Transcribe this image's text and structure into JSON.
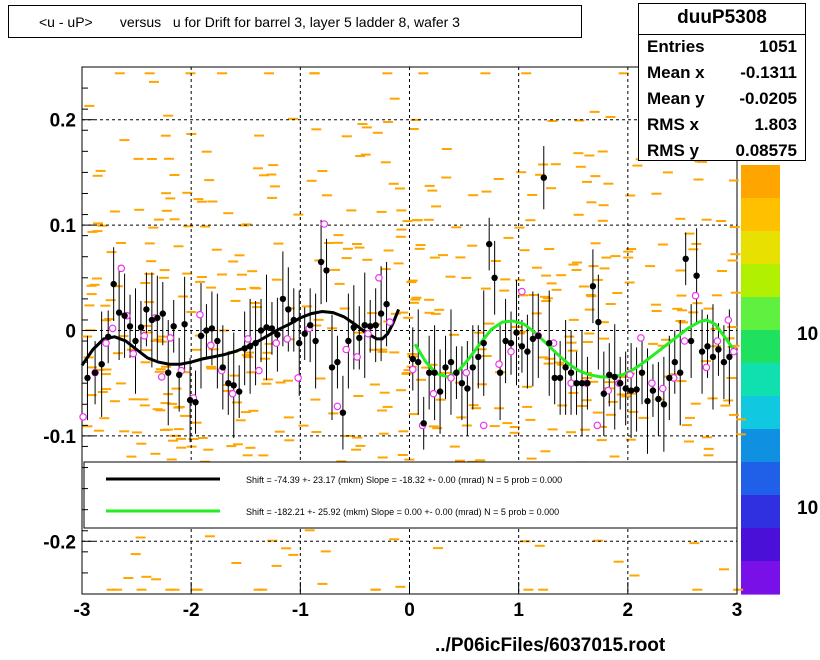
{
  "title": "<u - uP>       versus   u for Drift for barrel 3, layer 5 ladder 8, wafer 3",
  "stats": {
    "name": "duuP5308",
    "rows": [
      {
        "label": "Entries",
        "value": "1051"
      },
      {
        "label": "Mean x",
        "value": "-0.1311"
      },
      {
        "label": "Mean y",
        "value": "-0.0205"
      },
      {
        "label": "RMS x",
        "value": "1.803"
      },
      {
        "label": "RMS y",
        "value": "0.08575"
      }
    ]
  },
  "legend": [
    {
      "color": "#000000",
      "text": "Shift =   -74.39 +- 23.17 (mkm) Slope =   -18.32 +- 0.00 (mrad)  N = 5 prob = 0.000"
    },
    {
      "color": "#22ee22",
      "text": "Shift =  -182.21 +- 25.92 (mkm) Slope =     0.00 +- 0.00 (mrad)  N = 5 prob = 0.000"
    }
  ],
  "footer": "../P06icFiles/6037015.root",
  "palette_labels": [
    "10",
    "10"
  ],
  "colors": {
    "hist": "#ffa500",
    "black_fit": "#000000",
    "green_fit": "#22ee22",
    "open_marker": "#ee33ee"
  },
  "chart_data": {
    "type": "scatter",
    "xlim": [
      -3,
      3
    ],
    "ylim": [
      -0.25,
      0.25
    ],
    "x_ticks": [
      -3,
      -2,
      -1,
      0,
      1,
      2,
      3
    ],
    "x_tick_labels": [
      "-3",
      "-2",
      "-1",
      "0",
      "1",
      "2",
      "3"
    ],
    "y_ticks": [
      -0.2,
      -0.1,
      0,
      0.1,
      0.2
    ],
    "y_tick_labels": [
      "-0.2",
      "-0.1",
      "0",
      "0.1",
      "0.2"
    ],
    "grid": true,
    "black_points": [
      [
        -2.95,
        -0.045
      ],
      [
        -2.88,
        -0.04
      ],
      [
        -2.82,
        -0.032
      ],
      [
        -2.76,
        -0.006
      ],
      [
        -2.71,
        0.044
      ],
      [
        -2.66,
        0.017
      ],
      [
        -2.61,
        0.014
      ],
      [
        -2.56,
        0.004
      ],
      [
        -2.51,
        -0.01
      ],
      [
        -2.46,
        0.003
      ],
      [
        -2.41,
        0.02
      ],
      [
        -2.36,
        0.01
      ],
      [
        -2.31,
        0.012
      ],
      [
        -2.26,
        0.016
      ],
      [
        -2.21,
        -0.04
      ],
      [
        -2.16,
        0.004
      ],
      [
        -2.11,
        -0.042
      ],
      [
        -2.06,
        0.006
      ],
      [
        -2.01,
        -0.066
      ],
      [
        -1.96,
        -0.068
      ],
      [
        -1.91,
        -0.005
      ],
      [
        -1.86,
        0.0
      ],
      [
        -1.81,
        0.002
      ],
      [
        -1.76,
        -0.01
      ],
      [
        -1.71,
        -0.035
      ],
      [
        -1.66,
        -0.05
      ],
      [
        -1.61,
        -0.052
      ],
      [
        -1.56,
        -0.058
      ],
      [
        -1.51,
        -0.017
      ],
      [
        -1.46,
        -0.015
      ],
      [
        -1.41,
        -0.012
      ],
      [
        -1.36,
        0.0
      ],
      [
        -1.31,
        0.003
      ],
      [
        -1.26,
        0.002
      ],
      [
        -1.21,
        -0.004
      ],
      [
        -1.16,
        0.03
      ],
      [
        -1.11,
        0.02
      ],
      [
        -1.06,
        0.01
      ],
      [
        -1.01,
        -0.012
      ],
      [
        -0.96,
        -0.003
      ],
      [
        -0.91,
        0.005
      ],
      [
        -0.86,
        -0.01
      ],
      [
        -0.81,
        0.065
      ],
      [
        -0.76,
        0.057
      ],
      [
        -0.71,
        -0.035
      ],
      [
        -0.66,
        -0.03
      ],
      [
        -0.61,
        -0.078
      ],
      [
        -0.56,
        -0.01
      ],
      [
        -0.51,
        0.003
      ],
      [
        -0.46,
        -0.007
      ],
      [
        -0.41,
        0.005
      ],
      [
        -0.36,
        0.004
      ],
      [
        -0.31,
        0.005
      ],
      [
        -0.26,
        0.016
      ],
      [
        -0.21,
        0.025
      ],
      [
        0.03,
        -0.027
      ],
      [
        0.08,
        -0.03
      ],
      [
        0.13,
        -0.088
      ],
      [
        0.18,
        -0.04
      ],
      [
        0.23,
        -0.04
      ],
      [
        0.28,
        -0.058
      ],
      [
        0.33,
        -0.035
      ],
      [
        0.38,
        -0.03
      ],
      [
        0.43,
        -0.04
      ],
      [
        0.48,
        -0.05
      ],
      [
        0.53,
        -0.055
      ],
      [
        0.58,
        -0.035
      ],
      [
        0.63,
        -0.025
      ],
      [
        0.68,
        -0.012
      ],
      [
        0.73,
        0.082
      ],
      [
        0.78,
        0.05
      ],
      [
        0.83,
        -0.04
      ],
      [
        0.88,
        -0.01
      ],
      [
        0.93,
        -0.012
      ],
      [
        0.98,
        -0.002
      ],
      [
        1.03,
        -0.015
      ],
      [
        1.08,
        -0.02
      ],
      [
        1.13,
        -0.008
      ],
      [
        1.18,
        -0.005
      ],
      [
        1.23,
        0.145
      ],
      [
        1.28,
        -0.012
      ],
      [
        1.33,
        -0.045
      ],
      [
        1.38,
        -0.045
      ],
      [
        1.43,
        -0.035
      ],
      [
        1.48,
        -0.04
      ],
      [
        1.53,
        -0.05
      ],
      [
        1.58,
        -0.05
      ],
      [
        1.63,
        -0.05
      ],
      [
        1.68,
        0.042
      ],
      [
        1.73,
        0.008
      ],
      [
        1.78,
        -0.06
      ],
      [
        1.83,
        -0.042
      ],
      [
        1.88,
        -0.044
      ],
      [
        1.93,
        -0.05
      ],
      [
        1.98,
        -0.055
      ],
      [
        2.03,
        -0.057
      ],
      [
        2.08,
        -0.056
      ],
      [
        2.13,
        -0.04
      ],
      [
        2.18,
        -0.067
      ],
      [
        2.23,
        -0.057
      ],
      [
        2.28,
        -0.065
      ],
      [
        2.33,
        -0.07
      ],
      [
        2.38,
        -0.045
      ],
      [
        2.43,
        -0.03
      ],
      [
        2.48,
        -0.04
      ],
      [
        2.53,
        0.068
      ],
      [
        2.58,
        -0.01
      ],
      [
        2.63,
        0.052
      ],
      [
        2.68,
        -0.02
      ],
      [
        2.73,
        -0.015
      ],
      [
        2.78,
        -0.025
      ],
      [
        2.83,
        -0.018
      ],
      [
        2.88,
        -0.03
      ],
      [
        2.93,
        -0.025
      ]
    ],
    "open_points": [
      [
        -2.99,
        -0.082
      ],
      [
        -2.88,
        -0.04
      ],
      [
        -2.78,
        -0.012
      ],
      [
        -2.72,
        0.002
      ],
      [
        -2.64,
        0.059
      ],
      [
        -2.59,
        0.014
      ],
      [
        -2.53,
        -0.022
      ],
      [
        -2.43,
        -0.005
      ],
      [
        -2.33,
        0.012
      ],
      [
        -2.27,
        -0.044
      ],
      [
        -2.19,
        -0.007
      ],
      [
        -2.09,
        -0.038
      ],
      [
        -1.98,
        -0.064
      ],
      [
        -1.92,
        0.015
      ],
      [
        -1.82,
        -0.014
      ],
      [
        -1.72,
        -0.038
      ],
      [
        -1.62,
        -0.06
      ],
      [
        -1.48,
        -0.008
      ],
      [
        -1.38,
        -0.038
      ],
      [
        -1.22,
        -0.012
      ],
      [
        -1.12,
        -0.008
      ],
      [
        -1.02,
        -0.045
      ],
      [
        -0.92,
        0.002
      ],
      [
        -0.78,
        0.101
      ],
      [
        -0.66,
        -0.072
      ],
      [
        -0.58,
        -0.018
      ],
      [
        -0.48,
        -0.025
      ],
      [
        -0.38,
        -0.003
      ],
      [
        -0.28,
        0.05
      ],
      [
        -0.18,
        0.008
      ],
      [
        0.03,
        -0.037
      ],
      [
        0.12,
        -0.09
      ],
      [
        0.22,
        -0.06
      ],
      [
        0.38,
        -0.045
      ],
      [
        0.52,
        -0.04
      ],
      [
        0.68,
        -0.09
      ],
      [
        0.82,
        -0.032
      ],
      [
        0.93,
        -0.02
      ],
      [
        1.03,
        0.037
      ],
      [
        1.18,
        -0.005
      ],
      [
        1.32,
        -0.012
      ],
      [
        1.48,
        -0.05
      ],
      [
        1.62,
        -0.05
      ],
      [
        1.72,
        -0.09
      ],
      [
        1.82,
        -0.057
      ],
      [
        1.92,
        -0.05
      ],
      [
        2.02,
        -0.042
      ],
      [
        2.12,
        -0.007
      ],
      [
        2.22,
        -0.05
      ],
      [
        2.32,
        -0.055
      ],
      [
        2.42,
        -0.045
      ],
      [
        2.52,
        -0.01
      ],
      [
        2.62,
        0.033
      ],
      [
        2.72,
        -0.035
      ],
      [
        2.82,
        -0.01
      ],
      [
        2.92,
        0.01
      ],
      [
        2.97,
        -0.02
      ]
    ],
    "black_fit": [
      [
        -3.0,
        -0.033
      ],
      [
        -2.9,
        -0.018
      ],
      [
        -2.8,
        -0.008
      ],
      [
        -2.7,
        -0.006
      ],
      [
        -2.6,
        -0.01
      ],
      [
        -2.5,
        -0.018
      ],
      [
        -2.4,
        -0.026
      ],
      [
        -2.3,
        -0.03
      ],
      [
        -2.2,
        -0.032
      ],
      [
        -2.1,
        -0.032
      ],
      [
        -2.0,
        -0.03
      ],
      [
        -1.9,
        -0.027
      ],
      [
        -1.8,
        -0.025
      ],
      [
        -1.7,
        -0.023
      ],
      [
        -1.6,
        -0.02
      ],
      [
        -1.5,
        -0.016
      ],
      [
        -1.4,
        -0.011
      ],
      [
        -1.3,
        -0.005
      ],
      [
        -1.2,
        0.001
      ],
      [
        -1.1,
        0.006
      ],
      [
        -1.0,
        0.012
      ],
      [
        -0.9,
        0.016
      ],
      [
        -0.8,
        0.018
      ],
      [
        -0.7,
        0.017
      ],
      [
        -0.6,
        0.013
      ],
      [
        -0.5,
        0.006
      ],
      [
        -0.4,
        -0.002
      ],
      [
        -0.3,
        -0.008
      ],
      [
        -0.25,
        -0.008
      ],
      [
        -0.2,
        -0.003
      ],
      [
        -0.15,
        0.007
      ],
      [
        -0.1,
        0.02
      ]
    ],
    "green_fit": [
      [
        0.05,
        -0.013
      ],
      [
        0.15,
        -0.03
      ],
      [
        0.25,
        -0.041
      ],
      [
        0.35,
        -0.044
      ],
      [
        0.45,
        -0.038
      ],
      [
        0.55,
        -0.026
      ],
      [
        0.65,
        -0.012
      ],
      [
        0.75,
        0.001
      ],
      [
        0.85,
        0.008
      ],
      [
        0.95,
        0.009
      ],
      [
        1.05,
        0.006
      ],
      [
        1.15,
        -0.002
      ],
      [
        1.25,
        -0.012
      ],
      [
        1.35,
        -0.022
      ],
      [
        1.45,
        -0.031
      ],
      [
        1.55,
        -0.038
      ],
      [
        1.65,
        -0.042
      ],
      [
        1.75,
        -0.044
      ],
      [
        1.85,
        -0.044
      ],
      [
        1.95,
        -0.042
      ],
      [
        2.05,
        -0.037
      ],
      [
        2.15,
        -0.03
      ],
      [
        2.25,
        -0.022
      ],
      [
        2.35,
        -0.014
      ],
      [
        2.45,
        -0.006
      ],
      [
        2.55,
        0.002
      ],
      [
        2.65,
        0.008
      ],
      [
        2.72,
        0.01
      ],
      [
        2.8,
        0.006
      ],
      [
        2.9,
        -0.008
      ],
      [
        2.97,
        -0.018
      ]
    ]
  }
}
